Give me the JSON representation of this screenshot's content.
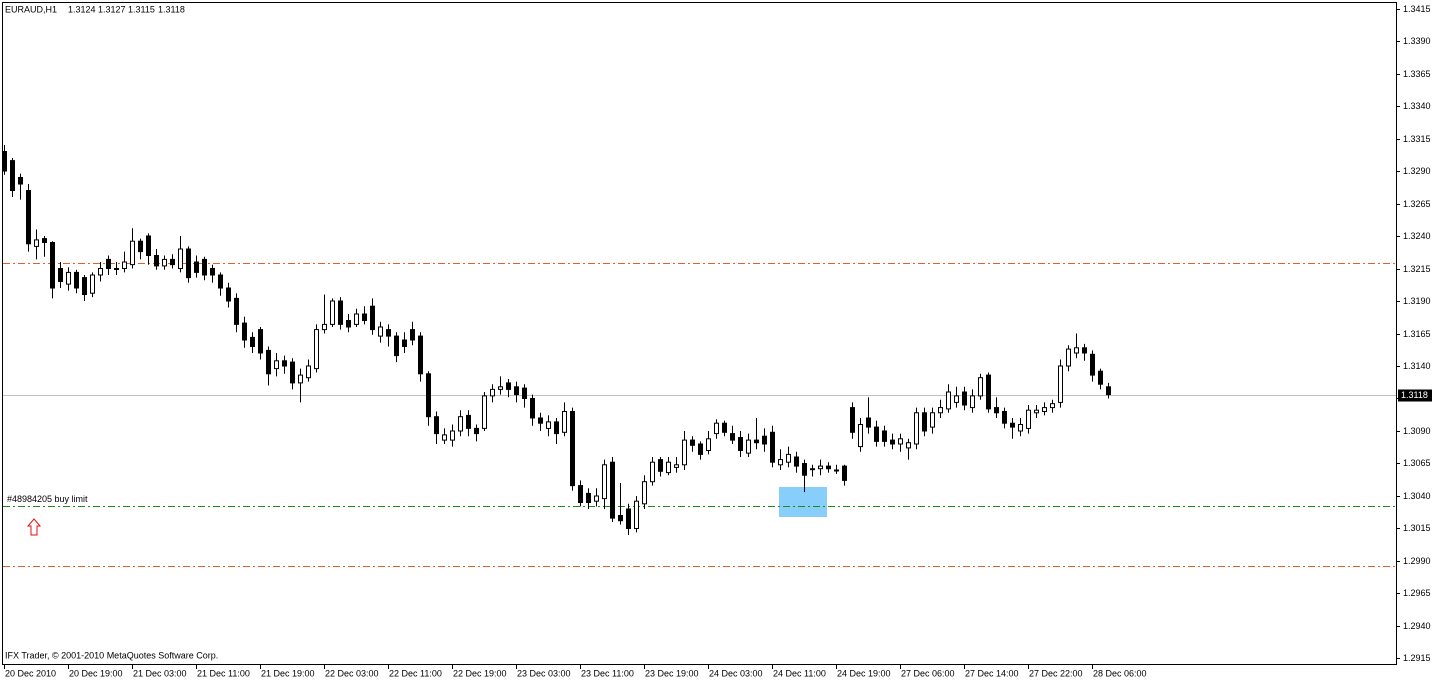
{
  "chart_data": {
    "type": "candlestick",
    "title": "EURAUD,H1",
    "categories": [
      "20 Dec 2010",
      null,
      null,
      null,
      null,
      null,
      null,
      null,
      "20 Dec 19:00",
      null,
      null,
      null,
      null,
      null,
      null,
      null,
      "21 Dec 03:00",
      null,
      null,
      null,
      null,
      null,
      null,
      null,
      "21 Dec 11:00",
      null,
      null,
      null,
      null,
      null,
      null,
      null,
      "21 Dec 19:00",
      null,
      null,
      null,
      null,
      null,
      null,
      null,
      "22 Dec 03:00",
      null,
      null,
      null,
      null,
      null,
      null,
      null,
      "22 Dec 11:00",
      null,
      null,
      null,
      null,
      null,
      null,
      null,
      "22 Dec 19:00",
      null,
      null,
      null,
      null,
      null,
      null,
      null,
      "23 Dec 03:00",
      null,
      null,
      null,
      null,
      null,
      null,
      null,
      "23 Dec 11:00",
      null,
      null,
      null,
      null,
      null,
      null,
      null,
      "23 Dec 19:00",
      null,
      null,
      null,
      null,
      null,
      null,
      null,
      "24 Dec 03:00",
      null,
      null,
      null,
      null,
      null,
      null,
      null,
      "24 Dec 11:00",
      null,
      null,
      null,
      null,
      null,
      null,
      null,
      "24 Dec 19:00",
      null,
      null,
      null,
      null,
      null,
      null,
      null,
      "27 Dec 06:00",
      null,
      null,
      null,
      null,
      null,
      null,
      null,
      "27 Dec 14:00",
      null,
      null,
      null,
      null,
      null,
      null,
      null,
      "27 Dec 22:00",
      null,
      null,
      null,
      null,
      null,
      null,
      null,
      "28 Dec 06:00",
      null,
      null
    ],
    "ohlc": [
      [
        1.3305,
        1.331,
        1.3287,
        1.329
      ],
      [
        1.3298,
        1.33,
        1.327,
        1.3275
      ],
      [
        1.3285,
        1.3288,
        1.3268,
        1.328
      ],
      [
        1.3275,
        1.328,
        1.3228,
        1.3234
      ],
      [
        1.3232,
        1.3245,
        1.3222,
        1.3237
      ],
      [
        1.3238,
        1.324,
        1.3224,
        1.3235
      ],
      [
        1.3235,
        1.3236,
        1.3192,
        1.32
      ],
      [
        1.3215,
        1.322,
        1.32,
        1.3205
      ],
      [
        1.3203,
        1.3216,
        1.3198,
        1.3212
      ],
      [
        1.3212,
        1.3214,
        1.3196,
        1.32
      ],
      [
        1.3208,
        1.321,
        1.319,
        1.3195
      ],
      [
        1.3196,
        1.3212,
        1.3193,
        1.321
      ],
      [
        1.321,
        1.322,
        1.3205,
        1.3215
      ],
      [
        1.3222,
        1.3225,
        1.321,
        1.3215
      ],
      [
        1.3215,
        1.322,
        1.321,
        1.3215
      ],
      [
        1.3215,
        1.3228,
        1.3212,
        1.322
      ],
      [
        1.3218,
        1.3246,
        1.3215,
        1.3236
      ],
      [
        1.3236,
        1.3238,
        1.3222,
        1.3228
      ],
      [
        1.324,
        1.3242,
        1.3218,
        1.3225
      ],
      [
        1.3225,
        1.323,
        1.3214,
        1.3217
      ],
      [
        1.3217,
        1.3225,
        1.3214,
        1.3222
      ],
      [
        1.3222,
        1.3226,
        1.3215,
        1.3218
      ],
      [
        1.3215,
        1.324,
        1.3212,
        1.323
      ],
      [
        1.323,
        1.3232,
        1.3204,
        1.3208
      ],
      [
        1.322,
        1.3225,
        1.3208,
        1.3212
      ],
      [
        1.3222,
        1.3224,
        1.3206,
        1.321
      ],
      [
        1.3215,
        1.3218,
        1.3204,
        1.321
      ],
      [
        1.321,
        1.3212,
        1.3194,
        1.32
      ],
      [
        1.32,
        1.3204,
        1.3185,
        1.319
      ],
      [
        1.3192,
        1.3196,
        1.3166,
        1.3172
      ],
      [
        1.3173,
        1.3178,
        1.3154,
        1.316
      ],
      [
        1.3162,
        1.3166,
        1.315,
        1.3155
      ],
      [
        1.3168,
        1.317,
        1.3145,
        1.315
      ],
      [
        1.3152,
        1.3155,
        1.3125,
        1.3134
      ],
      [
        1.3138,
        1.315,
        1.3132,
        1.3144
      ],
      [
        1.3144,
        1.3148,
        1.3134,
        1.314
      ],
      [
        1.3143,
        1.3146,
        1.3122,
        1.3127
      ],
      [
        1.3127,
        1.3138,
        1.3112,
        1.3133
      ],
      [
        1.3131,
        1.3145,
        1.3128,
        1.314
      ],
      [
        1.3138,
        1.3172,
        1.3135,
        1.3168
      ],
      [
        1.3168,
        1.3195,
        1.3165,
        1.3172
      ],
      [
        1.3172,
        1.3192,
        1.317,
        1.319
      ],
      [
        1.319,
        1.3193,
        1.3168,
        1.3172
      ],
      [
        1.3175,
        1.318,
        1.3166,
        1.317
      ],
      [
        1.3172,
        1.3184,
        1.317,
        1.318
      ],
      [
        1.318,
        1.3186,
        1.3172,
        1.3175
      ],
      [
        1.3186,
        1.3192,
        1.3164,
        1.3168
      ],
      [
        1.3163,
        1.3174,
        1.3158,
        1.317
      ],
      [
        1.3168,
        1.3172,
        1.3155,
        1.3163
      ],
      [
        1.3163,
        1.3166,
        1.3143,
        1.3148
      ],
      [
        1.316,
        1.3166,
        1.315,
        1.3155
      ],
      [
        1.3168,
        1.3174,
        1.3156,
        1.316
      ],
      [
        1.3163,
        1.3166,
        1.3128,
        1.3134
      ],
      [
        1.3134,
        1.3136,
        1.3094,
        1.3101
      ],
      [
        1.3101,
        1.3105,
        1.308,
        1.3088
      ],
      [
        1.3083,
        1.3092,
        1.308,
        1.3087
      ],
      [
        1.3083,
        1.3095,
        1.3078,
        1.309
      ],
      [
        1.309,
        1.3106,
        1.3086,
        1.3101
      ],
      [
        1.3102,
        1.3106,
        1.3086,
        1.3092
      ],
      [
        1.3092,
        1.3095,
        1.3082,
        1.3088
      ],
      [
        1.3092,
        1.312,
        1.309,
        1.3117
      ],
      [
        1.3117,
        1.3126,
        1.3112,
        1.3122
      ],
      [
        1.3122,
        1.3132,
        1.3118,
        1.3124
      ],
      [
        1.3127,
        1.313,
        1.3116,
        1.3122
      ],
      [
        1.3124,
        1.3128,
        1.3112,
        1.3118
      ],
      [
        1.3123,
        1.3126,
        1.3108,
        1.3115
      ],
      [
        1.3115,
        1.3118,
        1.3094,
        1.31
      ],
      [
        1.31,
        1.3104,
        1.309,
        1.3096
      ],
      [
        1.3092,
        1.3102,
        1.3086,
        1.3097
      ],
      [
        1.3097,
        1.31,
        1.308,
        1.3088
      ],
      [
        1.3089,
        1.3112,
        1.3086,
        1.3105
      ],
      [
        1.3105,
        1.3108,
        1.3044,
        1.3048
      ],
      [
        1.3048,
        1.3052,
        1.3032,
        1.3035
      ],
      [
        1.3042,
        1.3046,
        1.303,
        1.3035
      ],
      [
        1.3036,
        1.3046,
        1.3032,
        1.304
      ],
      [
        1.3038,
        1.3068,
        1.303,
        1.3064
      ],
      [
        1.3066,
        1.307,
        1.302,
        1.3023
      ],
      [
        1.3025,
        1.305,
        1.3018,
        1.3021
      ],
      [
        1.303,
        1.3034,
        1.301,
        1.3015
      ],
      [
        1.3015,
        1.304,
        1.3012,
        1.3036
      ],
      [
        1.3034,
        1.3056,
        1.303,
        1.3051
      ],
      [
        1.3051,
        1.307,
        1.3048,
        1.3066
      ],
      [
        1.3068,
        1.307,
        1.3055,
        1.3059
      ],
      [
        1.3058,
        1.307,
        1.3056,
        1.3066
      ],
      [
        1.3062,
        1.307,
        1.3058,
        1.3064
      ],
      [
        1.3064,
        1.309,
        1.306,
        1.3083
      ],
      [
        1.3083,
        1.3086,
        1.3074,
        1.3079
      ],
      [
        1.308,
        1.3082,
        1.3068,
        1.3072
      ],
      [
        1.3075,
        1.309,
        1.3072,
        1.3084
      ],
      [
        1.3088,
        1.3099,
        1.3084,
        1.3096
      ],
      [
        1.3096,
        1.3098,
        1.3086,
        1.3089
      ],
      [
        1.3088,
        1.3094,
        1.308,
        1.3083
      ],
      [
        1.3085,
        1.309,
        1.307,
        1.3075
      ],
      [
        1.3073,
        1.3088,
        1.307,
        1.3083
      ],
      [
        1.3083,
        1.31,
        1.3076,
        1.3081
      ],
      [
        1.3086,
        1.3092,
        1.3074,
        1.308
      ],
      [
        1.3089,
        1.3094,
        1.3062,
        1.3066
      ],
      [
        1.3064,
        1.3076,
        1.306,
        1.3068
      ],
      [
        1.3066,
        1.3078,
        1.3062,
        1.3072
      ],
      [
        1.307,
        1.3074,
        1.3058,
        1.3063
      ],
      [
        1.3065,
        1.3068,
        1.3043,
        1.3056
      ],
      [
        1.3061,
        1.3064,
        1.3055,
        1.3061
      ],
      [
        1.3061,
        1.3068,
        1.3056,
        1.3063
      ],
      [
        1.3063,
        1.3066,
        1.3058,
        1.3061
      ],
      [
        1.306,
        1.3064,
        1.3057,
        1.306
      ],
      [
        1.3063,
        1.3064,
        1.3048,
        1.3052
      ],
      [
        1.3108,
        1.3112,
        1.3084,
        1.3089
      ],
      [
        1.3078,
        1.31,
        1.3074,
        1.3095
      ],
      [
        1.31,
        1.3116,
        1.3088,
        1.3093
      ],
      [
        1.3093,
        1.3098,
        1.3078,
        1.3082
      ],
      [
        1.309,
        1.3094,
        1.3078,
        1.3082
      ],
      [
        1.3083,
        1.3088,
        1.3076,
        1.308
      ],
      [
        1.308,
        1.3088,
        1.3074,
        1.3084
      ],
      [
        1.3077,
        1.3084,
        1.3068,
        1.3081
      ],
      [
        1.308,
        1.3108,
        1.3076,
        1.3104
      ],
      [
        1.3104,
        1.3108,
        1.3086,
        1.309
      ],
      [
        1.3093,
        1.3108,
        1.3088,
        1.3104
      ],
      [
        1.3104,
        1.3114,
        1.31,
        1.3108
      ],
      [
        1.3107,
        1.3126,
        1.3104,
        1.312
      ],
      [
        1.3112,
        1.3124,
        1.3108,
        1.3117
      ],
      [
        1.312,
        1.3124,
        1.3106,
        1.311
      ],
      [
        1.3108,
        1.3122,
        1.3104,
        1.3117
      ],
      [
        1.3117,
        1.3134,
        1.3114,
        1.3131
      ],
      [
        1.3133,
        1.3135,
        1.3104,
        1.3107
      ],
      [
        1.3108,
        1.3116,
        1.31,
        1.3104
      ],
      [
        1.3105,
        1.3108,
        1.3092,
        1.3096
      ],
      [
        1.3096,
        1.31,
        1.3084,
        1.3093
      ],
      [
        1.309,
        1.31,
        1.3086,
        1.3095
      ],
      [
        1.3092,
        1.311,
        1.3088,
        1.3106
      ],
      [
        1.3104,
        1.311,
        1.31,
        1.3106
      ],
      [
        1.3105,
        1.3112,
        1.3102,
        1.3108
      ],
      [
        1.3108,
        1.3114,
        1.3104,
        1.3111
      ],
      [
        1.3112,
        1.3145,
        1.3108,
        1.314
      ],
      [
        1.314,
        1.3156,
        1.3136,
        1.3153
      ],
      [
        1.315,
        1.3165,
        1.3146,
        1.3154
      ],
      [
        1.3154,
        1.3157,
        1.3144,
        1.315
      ],
      [
        1.3149,
        1.3152,
        1.3128,
        1.3133
      ],
      [
        1.3136,
        1.3138,
        1.3122,
        1.3126
      ],
      [
        1.3124,
        1.3127,
        1.3115,
        1.3118
      ]
    ],
    "ylim": [
      1.291,
      1.342
    ],
    "yticks": [
      1.3415,
      {
        "value": 1.339,
        "label": "1.3390"
      },
      1.3365,
      {
        "value": 1.334,
        "label": "1.3340"
      },
      1.3315,
      {
        "value": 1.329,
        "label": "1.3290"
      },
      1.3265,
      {
        "value": 1.324,
        "label": "1.3240"
      },
      1.3215,
      {
        "value": 1.319,
        "label": "1.3190"
      },
      1.3165,
      {
        "value": 1.314,
        "label": "1.3140"
      },
      1.3115,
      {
        "value": 1.309,
        "label": "1.3090"
      },
      1.3065,
      {
        "value": 1.304,
        "label": "1.3040"
      },
      1.3015,
      {
        "value": 1.299,
        "label": "1.2990"
      },
      1.2965,
      {
        "value": 1.294,
        "label": "1.2940"
      },
      1.2915
    ],
    "levels": [
      {
        "value": 1.3219,
        "color": "#e0602a"
      },
      {
        "value": 1.2986,
        "color": "#e0602a"
      }
    ],
    "order": {
      "label": "#48984205 buy limit",
      "value": 1.3032,
      "color": "#1a8a1a"
    },
    "copyright": "IFX Trader, © 2001-2010 MetaQuotes Software Corp."
  }
}
